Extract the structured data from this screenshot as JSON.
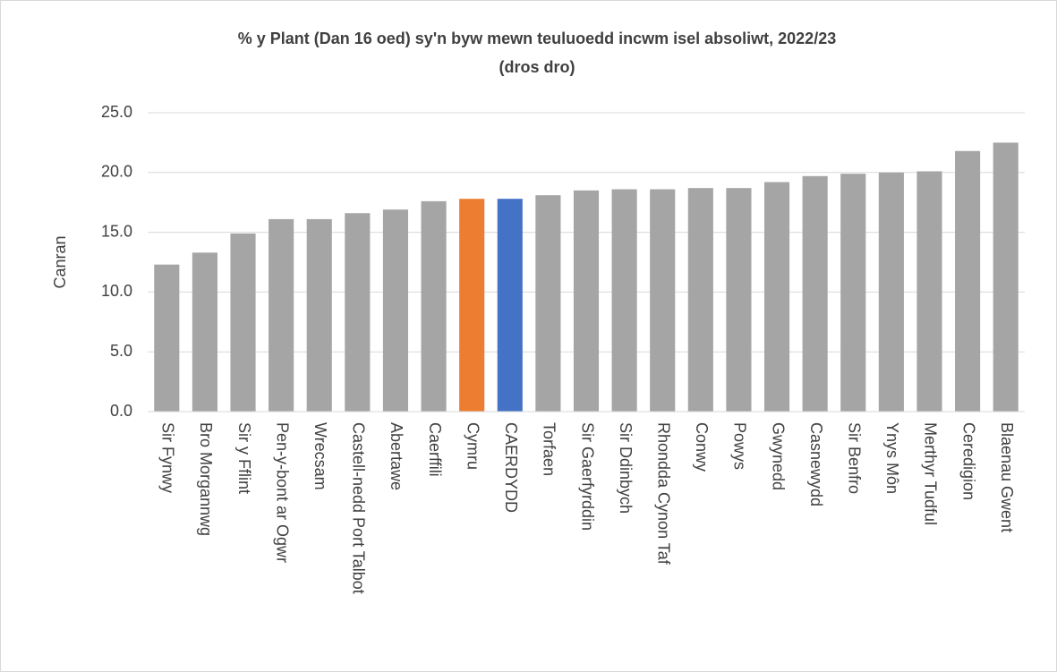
{
  "chart_data": {
    "type": "bar",
    "title": [
      "% y Plant (Dan 16 oed) sy'n byw mewn teuluoedd incwm isel absoliwt, 2022/23",
      "(dros dro)"
    ],
    "y_label": "Canran",
    "categories": [
      "Sir Fynwy",
      "Bro Morgannwg",
      "Sir y Fflint",
      "Pen-y-bont ar Ogwr",
      "Wrecsam",
      "Castell-nedd Port Talbot",
      "Abertawe",
      "Caerffili",
      "Cymru",
      "CAERDYDD",
      "Torfaen",
      "Sir Gaerfyrddin",
      "Sir Ddinbych",
      "Rhondda Cynon Taf",
      "Conwy",
      "Powys",
      "Gwynedd",
      "Casnewydd",
      "Sir Benfro",
      "Ynys Môn",
      "Merthyr Tudful",
      "Ceredigion",
      "Blaenau Gwent"
    ],
    "values": [
      12.3,
      13.3,
      14.9,
      16.1,
      16.1,
      16.6,
      16.9,
      17.6,
      17.8,
      17.8,
      18.1,
      18.5,
      18.6,
      18.6,
      18.7,
      18.7,
      19.2,
      19.7,
      19.9,
      20.0,
      20.1,
      21.8,
      22.5
    ],
    "colors": [
      "#a5a5a5",
      "#a5a5a5",
      "#a5a5a5",
      "#a5a5a5",
      "#a5a5a5",
      "#a5a5a5",
      "#a5a5a5",
      "#a5a5a5",
      "#ed7d31",
      "#4472c4",
      "#a5a5a5",
      "#a5a5a5",
      "#a5a5a5",
      "#a5a5a5",
      "#a5a5a5",
      "#a5a5a5",
      "#a5a5a5",
      "#a5a5a5",
      "#a5a5a5",
      "#a5a5a5",
      "#a5a5a5",
      "#a5a5a5",
      "#a5a5a5"
    ],
    "ylim": [
      0,
      25
    ],
    "yticks": [
      {
        "value": 0,
        "label": "0.0"
      },
      {
        "value": 5,
        "label": "5.0"
      },
      {
        "value": 10,
        "label": "10.0"
      },
      {
        "value": 15,
        "label": "15.0"
      },
      {
        "value": 20,
        "label": "20.0"
      },
      {
        "value": 25,
        "label": "25.0"
      }
    ],
    "grid": true
  }
}
